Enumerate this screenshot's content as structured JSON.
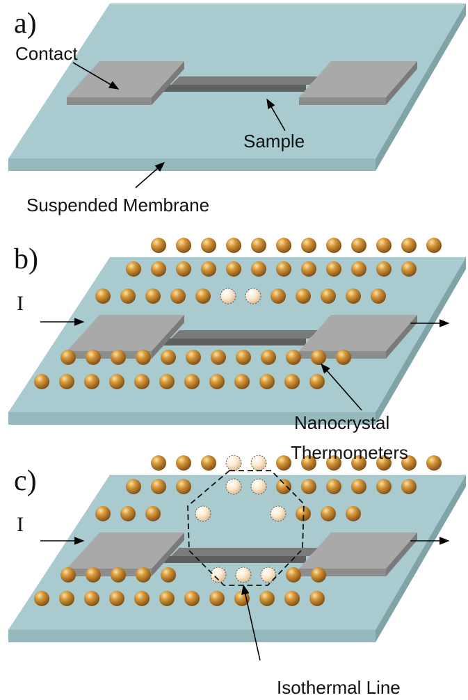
{
  "panels": [
    {
      "label": "a)",
      "contact": "Contact",
      "sample": "Sample",
      "membrane": "Suspended Membrane"
    },
    {
      "label": "b)",
      "current": "I",
      "annotation": [
        "Nanocrystal",
        "Thermometers"
      ]
    },
    {
      "label": "c)",
      "current": "I",
      "annotation": [
        "Isothermal Line"
      ]
    }
  ]
}
